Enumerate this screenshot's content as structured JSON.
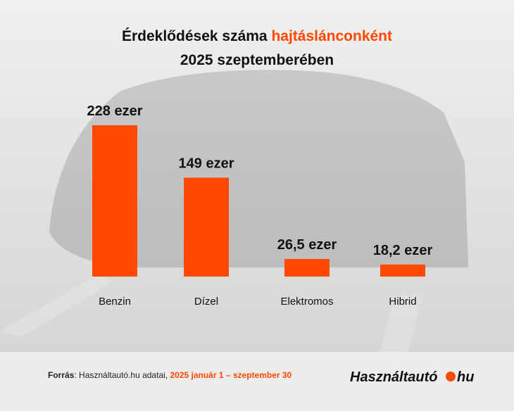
{
  "chart_data": {
    "type": "bar",
    "title": "Érdeklődések száma",
    "title_highlight": "hajtáslánconként",
    "subtitle": "2025 szeptemberében",
    "categories": [
      "Benzin",
      "Dízel",
      "Elektromos",
      "Hibrid"
    ],
    "values": [
      228,
      149,
      26.5,
      18.2
    ],
    "value_labels": [
      "228 ezer",
      "149 ezer",
      "26,5 ezer",
      "18,2 ezer"
    ],
    "color": "#ff4800"
  },
  "footer": {
    "source_label": "Forrás",
    "source_text": ": Használtautó.hu adatai,",
    "source_period": "2025 január 1 – szeptember 30",
    "logo_name": "Használtautó",
    "logo_tld": "hu"
  }
}
